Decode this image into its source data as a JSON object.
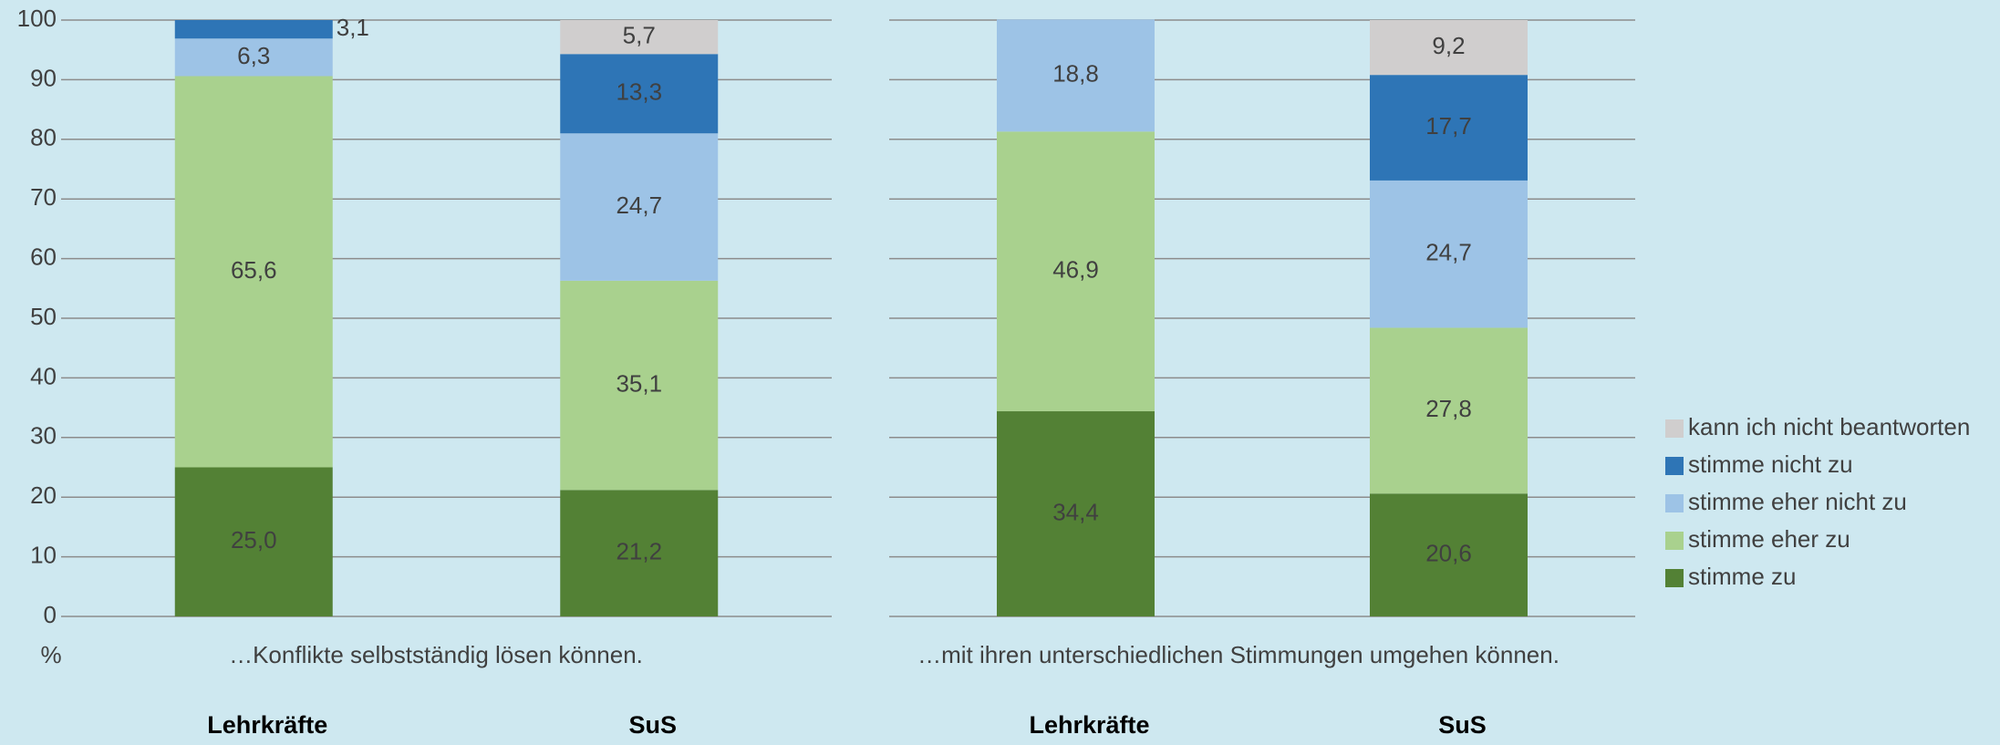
{
  "chart_data": {
    "type": "bar",
    "stacked": true,
    "y_label": "%",
    "groups": [
      "…Konflikte selbstständig lösen können.",
      "…mit ihren unterschiedlichen Stimmungen umgehen können."
    ],
    "categories": [
      "Lehrkräfte",
      "SuS",
      "Lehrkräfte",
      "SuS"
    ],
    "series": [
      {
        "name": "stimme zu",
        "color": "#538135",
        "values": [
          25.0,
          21.2,
          34.4,
          20.6
        ],
        "value_labels": [
          "25,0",
          "21,2",
          "34,4",
          "20,6"
        ]
      },
      {
        "name": "stimme eher zu",
        "color": "#a9d18e",
        "values": [
          65.6,
          35.1,
          46.9,
          27.8
        ],
        "value_labels": [
          "65,6",
          "35,1",
          "46,9",
          "27,8"
        ]
      },
      {
        "name": "stimme eher nicht zu",
        "color": "#9dc3e6",
        "values": [
          6.3,
          24.7,
          18.8,
          24.7
        ],
        "value_labels": [
          "6,3",
          "24,7",
          "18,8",
          "24,7"
        ]
      },
      {
        "name": "stimme nicht zu",
        "color": "#2e75b6",
        "values": [
          3.1,
          13.3,
          null,
          17.7
        ],
        "value_labels": [
          "3,1",
          "13,3",
          null,
          "17,7"
        ]
      },
      {
        "name": "kann ich nicht beantworten",
        "color": "#d0cece",
        "values": [
          null,
          5.7,
          null,
          9.2
        ],
        "value_labels": [
          null,
          "5,7",
          null,
          "9,2"
        ]
      }
    ],
    "ylim": [
      0,
      100
    ],
    "yticks": [
      0,
      10,
      20,
      30,
      40,
      50,
      60,
      70,
      80,
      90,
      100
    ],
    "grid": true,
    "legend": "right"
  }
}
